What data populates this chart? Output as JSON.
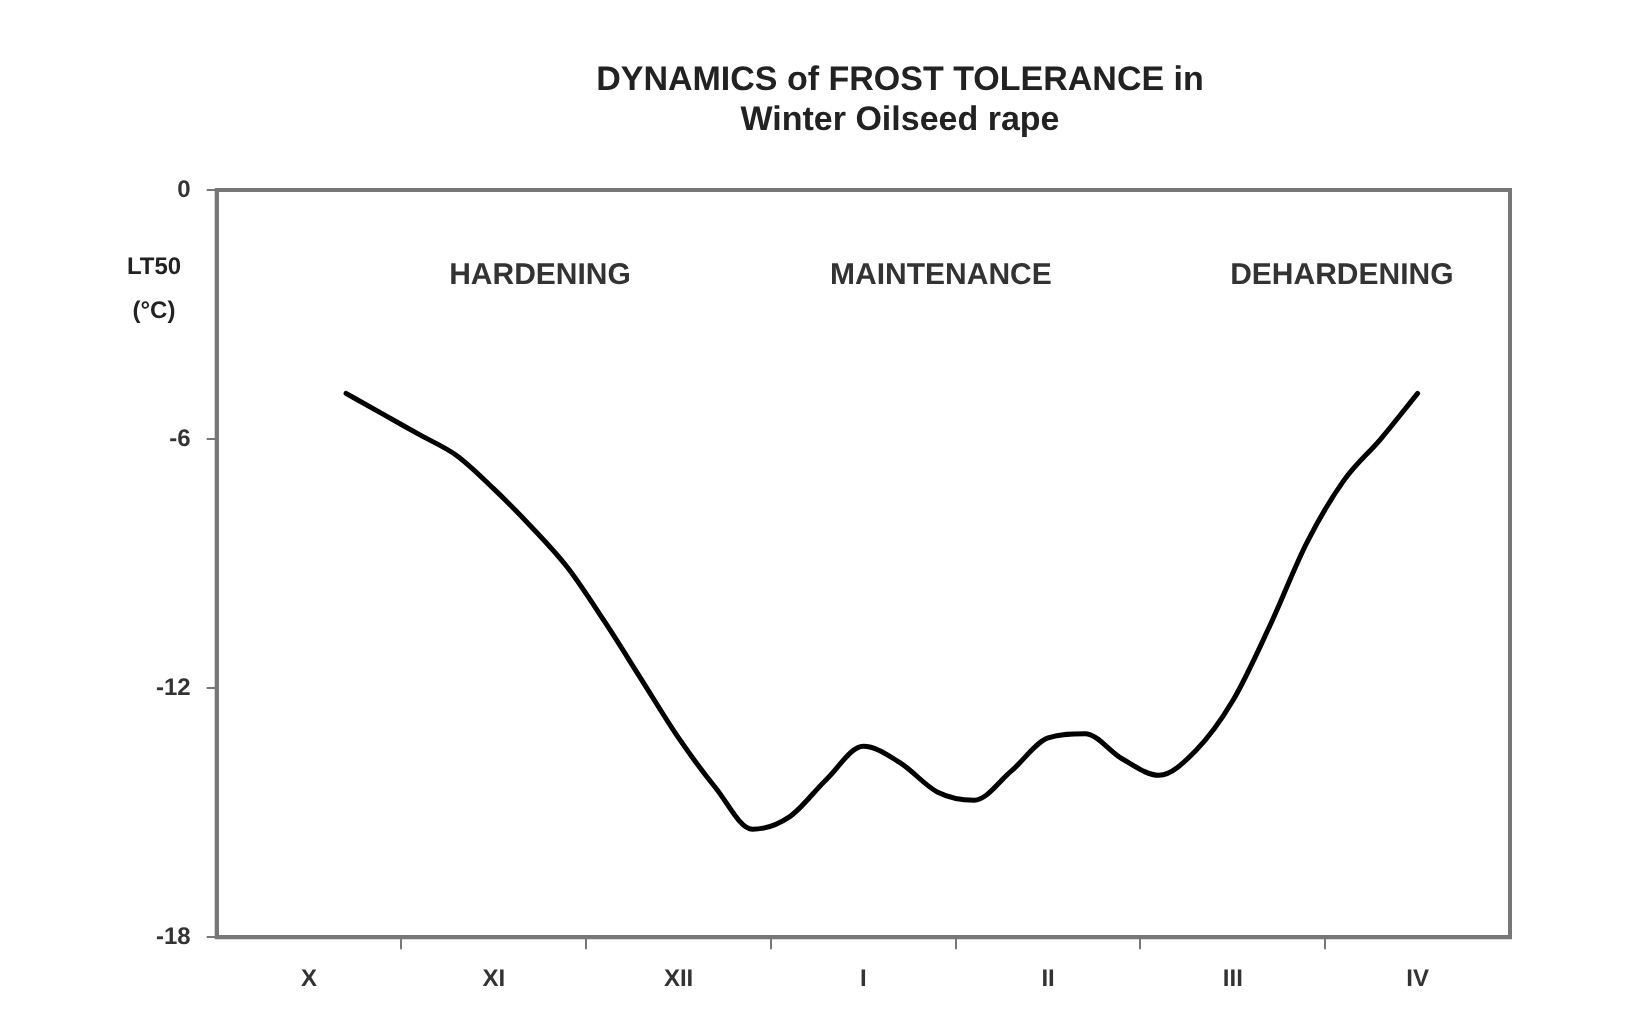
{
  "chart_data": {
    "type": "line",
    "title": "DYNAMICS of FROST TOLERANCE in Winter Oilseed rape",
    "ylabel": "LT50 (°C)",
    "annotations": [
      "HARDENING",
      "MAINTENANCE",
      "DEHARDENING"
    ],
    "categories": [
      null,
      null,
      "X",
      null,
      null,
      null,
      null,
      "XI",
      null,
      null,
      null,
      null,
      "XII",
      null,
      null,
      null,
      null,
      "I",
      null,
      null,
      null,
      null,
      "II",
      null,
      null,
      null,
      null,
      "III",
      null,
      null,
      null,
      null,
      "IV",
      null,
      null
    ],
    "series": [
      {
        "color": "#000000",
        "values": [
          null,
          null,
          null,
          -4.9,
          -5.4,
          -5.9,
          -6.4,
          -7.2,
          -8.1,
          -9.1,
          -10.4,
          -11.8,
          -13.2,
          -14.4,
          -15.4,
          -15.1,
          -14.2,
          -13.4,
          -13.8,
          -14.5,
          -14.7,
          -14.0,
          -13.2,
          -13.1,
          -13.7,
          -14.1,
          -13.5,
          -12.3,
          -10.5,
          -8.5,
          -7.0,
          -6.0,
          -4.9,
          null,
          null
        ]
      }
    ],
    "ylim": [
      -18,
      0
    ],
    "yticks": [
      0,
      -6,
      -12,
      -18
    ],
    "grid": false,
    "legend": false,
    "marker": "none",
    "line_style": "solid"
  }
}
